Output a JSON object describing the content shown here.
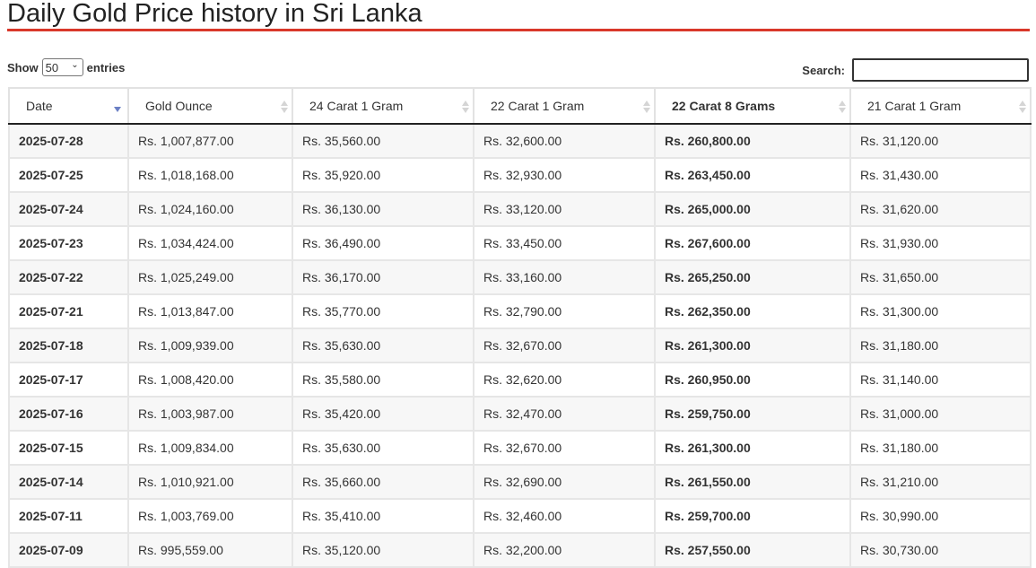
{
  "page_title": "Daily Gold Price history in Sri Lanka",
  "colors": {
    "title_rule": "#d9382a",
    "sort_active": "#6b7fc4"
  },
  "length_control": {
    "show_label": "Show",
    "selected": "50",
    "entries_label": "entries"
  },
  "search": {
    "label": "Search:",
    "value": ""
  },
  "table": {
    "headers": [
      "Date",
      "Gold Ounce",
      "24 Carat 1 Gram",
      "22 Carat 1 Gram",
      "22 Carat 8 Grams",
      "21 Carat 1 Gram"
    ],
    "sort": {
      "column": "Date",
      "direction": "descending"
    },
    "rows": [
      [
        "2025-07-28",
        "Rs. 1,007,877.00",
        "Rs. 35,560.00",
        "Rs. 32,600.00",
        "Rs. 260,800.00",
        "Rs. 31,120.00"
      ],
      [
        "2025-07-25",
        "Rs. 1,018,168.00",
        "Rs. 35,920.00",
        "Rs. 32,930.00",
        "Rs. 263,450.00",
        "Rs. 31,430.00"
      ],
      [
        "2025-07-24",
        "Rs. 1,024,160.00",
        "Rs. 36,130.00",
        "Rs. 33,120.00",
        "Rs. 265,000.00",
        "Rs. 31,620.00"
      ],
      [
        "2025-07-23",
        "Rs. 1,034,424.00",
        "Rs. 36,490.00",
        "Rs. 33,450.00",
        "Rs. 267,600.00",
        "Rs. 31,930.00"
      ],
      [
        "2025-07-22",
        "Rs. 1,025,249.00",
        "Rs. 36,170.00",
        "Rs. 33,160.00",
        "Rs. 265,250.00",
        "Rs. 31,650.00"
      ],
      [
        "2025-07-21",
        "Rs. 1,013,847.00",
        "Rs. 35,770.00",
        "Rs. 32,790.00",
        "Rs. 262,350.00",
        "Rs. 31,300.00"
      ],
      [
        "2025-07-18",
        "Rs. 1,009,939.00",
        "Rs. 35,630.00",
        "Rs. 32,670.00",
        "Rs. 261,300.00",
        "Rs. 31,180.00"
      ],
      [
        "2025-07-17",
        "Rs. 1,008,420.00",
        "Rs. 35,580.00",
        "Rs. 32,620.00",
        "Rs. 260,950.00",
        "Rs. 31,140.00"
      ],
      [
        "2025-07-16",
        "Rs. 1,003,987.00",
        "Rs. 35,420.00",
        "Rs. 32,470.00",
        "Rs. 259,750.00",
        "Rs. 31,000.00"
      ],
      [
        "2025-07-15",
        "Rs. 1,009,834.00",
        "Rs. 35,630.00",
        "Rs. 32,670.00",
        "Rs. 261,300.00",
        "Rs. 31,180.00"
      ],
      [
        "2025-07-14",
        "Rs. 1,010,921.00",
        "Rs. 35,660.00",
        "Rs. 32,690.00",
        "Rs. 261,550.00",
        "Rs. 31,210.00"
      ],
      [
        "2025-07-11",
        "Rs. 1,003,769.00",
        "Rs. 35,410.00",
        "Rs. 32,460.00",
        "Rs. 259,700.00",
        "Rs. 30,990.00"
      ],
      [
        "2025-07-09",
        "Rs. 995,559.00",
        "Rs. 35,120.00",
        "Rs. 32,200.00",
        "Rs. 257,550.00",
        "Rs. 30,730.00"
      ]
    ]
  }
}
